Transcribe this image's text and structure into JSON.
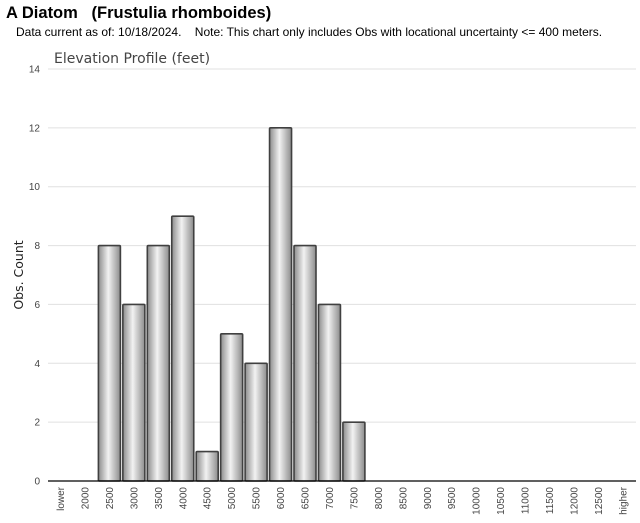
{
  "header": {
    "species_title": "A Diatom   (Frustulia rhomboides)",
    "note": "Data current as of: 10/18/2024.    Note: This chart only includes Obs with locational uncertainty <= 400 meters."
  },
  "colors": {
    "bar_edge": "#404040",
    "bar_light": "#f2f2f2",
    "bar_dark": "#8c8c8c",
    "grid": "#e0e0e0",
    "axis": "#000000"
  },
  "chart_data": {
    "type": "bar",
    "title": "Elevation Profile (feet)",
    "xlabel": "",
    "ylabel": "Obs. Count",
    "categories": [
      "lower",
      "2000",
      "2500",
      "3000",
      "3500",
      "4000",
      "4500",
      "5000",
      "5500",
      "6000",
      "6500",
      "7000",
      "7500",
      "8000",
      "8500",
      "9000",
      "9500",
      "10000",
      "10500",
      "11000",
      "11500",
      "12000",
      "12500",
      "higher"
    ],
    "values": [
      0,
      0,
      8,
      6,
      8,
      9,
      1,
      5,
      4,
      12,
      8,
      6,
      2,
      0,
      0,
      0,
      0,
      0,
      0,
      0,
      0,
      0,
      0,
      0
    ],
    "ylim": [
      0,
      14
    ],
    "yticks": [
      0,
      2,
      4,
      6,
      8,
      10,
      12,
      14
    ],
    "grid": true,
    "legend": "none"
  }
}
